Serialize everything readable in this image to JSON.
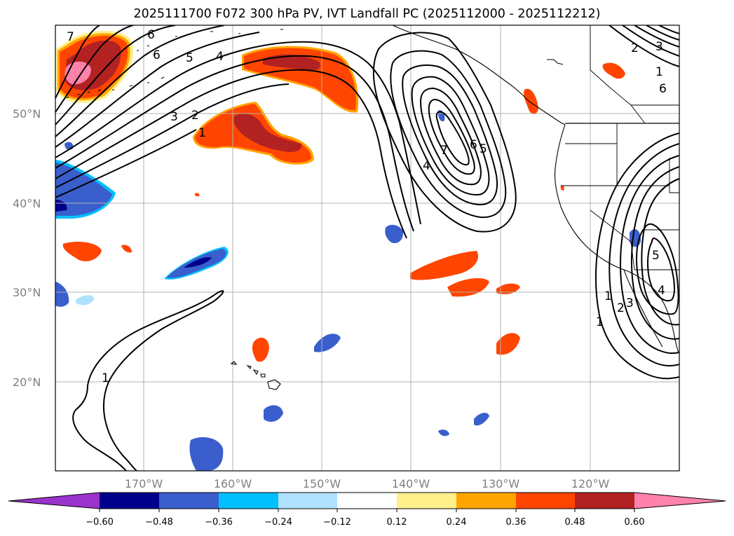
{
  "title": "2025111700 F072 300 hPa PV, IVT Landfall PC (2025112000 - 2025112212)",
  "map": {
    "lat_labels": [
      "50°N",
      "40°N",
      "30°N",
      "20°N"
    ],
    "lon_labels": [
      "170°W",
      "160°W",
      "150°W",
      "140°W",
      "130°W",
      "120°W"
    ]
  },
  "contour_labels": [
    "7",
    "6",
    "5",
    "4",
    "3",
    "2",
    "1",
    "7",
    "6",
    "5",
    "4",
    "3",
    "2",
    "1",
    "6",
    "5",
    "4",
    "3",
    "2",
    "1",
    "1"
  ],
  "colorbar": {
    "colors": [
      "#9933cc",
      "#00008b",
      "#3a5fcd",
      "#00bfff",
      "#b0e2ff",
      "#ffffff",
      "#fff08b",
      "#ffa500",
      "#ff4500",
      "#b22222",
      "#ff82ab"
    ],
    "ticks": [
      "−0.60",
      "−0.48",
      "−0.36",
      "−0.24",
      "−0.12",
      "0.12",
      "0.24",
      "0.36",
      "0.48",
      "0.60"
    ]
  }
}
